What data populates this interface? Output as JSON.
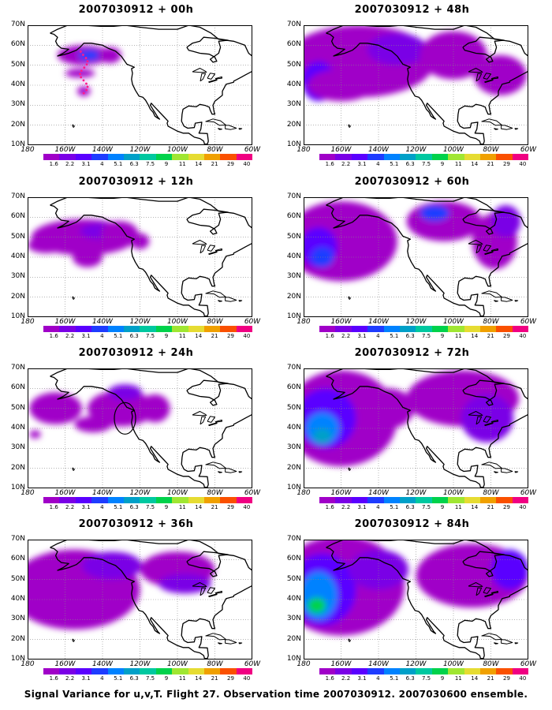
{
  "panels": [
    {
      "title": "2007030912 + 00h",
      "lead": "00h",
      "pattern": "p00"
    },
    {
      "title": "2007030912 + 48h",
      "lead": "48h",
      "pattern": "p48"
    },
    {
      "title": "2007030912 + 12h",
      "lead": "12h",
      "pattern": "p12"
    },
    {
      "title": "2007030912 + 60h",
      "lead": "60h",
      "pattern": "p60"
    },
    {
      "title": "2007030912 + 24h",
      "lead": "24h",
      "pattern": "p24"
    },
    {
      "title": "2007030912 + 72h",
      "lead": "72h",
      "pattern": "p72"
    },
    {
      "title": "2007030912 + 36h",
      "lead": "36h",
      "pattern": "p36"
    },
    {
      "title": "2007030912 + 84h",
      "lead": "84h",
      "pattern": "p84"
    }
  ],
  "lat_labels": [
    "70N",
    "60N",
    "50N",
    "40N",
    "30N",
    "20N",
    "10N"
  ],
  "lon_labels": [
    "180",
    "160W",
    "140W",
    "120W",
    "100W",
    "80W",
    "60W"
  ],
  "colorbar": {
    "labels": [
      "1.6",
      "2.2",
      "3.1",
      "4",
      "5.1",
      "6.3",
      "7.5",
      "9",
      "11",
      "14",
      "21",
      "29",
      "40"
    ],
    "colors": [
      "#a000c8",
      "#7a00e6",
      "#5a00ff",
      "#1e3cff",
      "#0082ff",
      "#00a0c8",
      "#00c8a0",
      "#00d24b",
      "#a0e632",
      "#e6dc32",
      "#f0a000",
      "#fa5000",
      "#f00082"
    ]
  },
  "caption": "Signal Variance for u,v,T. Flight 27. Observation time 2007030912. 2007030600 ensemble."
}
